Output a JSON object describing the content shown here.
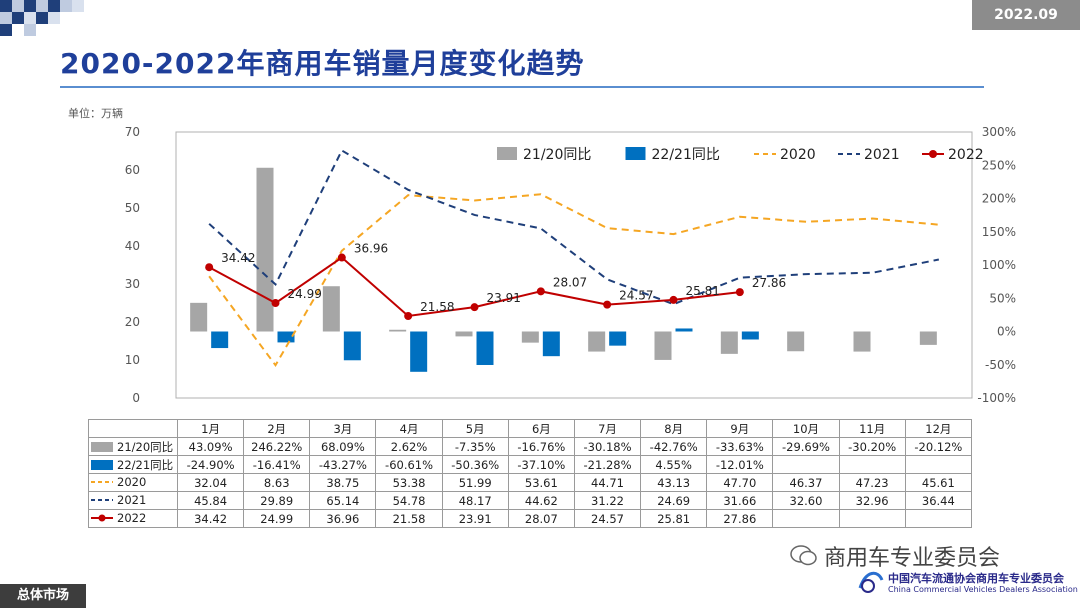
{
  "header": {
    "date": "2022.09",
    "title": "2020-2022年商用车销量月度变化趋势",
    "unit": "单位：万辆"
  },
  "footer": {
    "section": "总体市场",
    "wechat": "商用车专业委员会",
    "association_cn": "中国汽车流通协会商用车专业委员会",
    "association_en": "China Commercial Vehicles Dealers Association"
  },
  "colors": {
    "title": "#1f3f9a",
    "bar_2120": "#a6a6a6",
    "bar_2221": "#0070c0",
    "line_2020": "#f5a623",
    "line_2021": "#1f3f7a",
    "line_2022": "#c00000"
  },
  "chart_data": {
    "type": "bar+line",
    "categories": [
      "1月",
      "2月",
      "3月",
      "4月",
      "5月",
      "6月",
      "7月",
      "8月",
      "9月",
      "10月",
      "11月",
      "12月"
    ],
    "left_axis": {
      "min": 0,
      "max": 70,
      "ticks": [
        "0",
        "10",
        "20",
        "30",
        "40",
        "50",
        "60",
        "70"
      ]
    },
    "right_axis": {
      "min": -100,
      "max": 300,
      "ticks": [
        "-100%",
        "-50%",
        "0%",
        "50%",
        "100%",
        "150%",
        "200%",
        "250%",
        "300%"
      ]
    },
    "bars": [
      {
        "name": "21/20同比",
        "axis": "right",
        "values": [
          43.09,
          246.22,
          68.09,
          2.62,
          -7.35,
          -16.76,
          -30.18,
          -42.76,
          -33.63,
          -29.69,
          -30.2,
          -20.12
        ],
        "labels": [
          "43.09%",
          "246.22%",
          "68.09%",
          "2.62%",
          "-7.35%",
          "-16.76%",
          "-30.18%",
          "-42.76%",
          "-33.63%",
          "-29.69%",
          "-30.20%",
          "-20.12%"
        ]
      },
      {
        "name": "22/21同比",
        "axis": "right",
        "values": [
          -24.9,
          -16.41,
          -43.27,
          -60.61,
          -50.36,
          -37.1,
          -21.28,
          4.55,
          -12.01,
          null,
          null,
          null
        ],
        "labels": [
          "-24.90%",
          "-16.41%",
          "-43.27%",
          "-60.61%",
          "-50.36%",
          "-37.10%",
          "-21.28%",
          "4.55%",
          "-12.01%",
          "",
          "",
          ""
        ]
      }
    ],
    "lines": [
      {
        "name": "2020",
        "axis": "left",
        "style": "dashed",
        "values": [
          32.04,
          8.63,
          38.75,
          53.38,
          51.99,
          53.61,
          44.71,
          43.13,
          47.7,
          46.37,
          47.23,
          45.61
        ],
        "labels": [
          "32.04",
          "8.63",
          "38.75",
          "53.38",
          "51.99",
          "53.61",
          "44.71",
          "43.13",
          "47.70",
          "46.37",
          "47.23",
          "45.61"
        ]
      },
      {
        "name": "2021",
        "axis": "left",
        "style": "dashed",
        "values": [
          45.84,
          29.89,
          65.14,
          54.78,
          48.17,
          44.62,
          31.22,
          24.69,
          31.66,
          32.6,
          32.96,
          36.44
        ],
        "labels": [
          "45.84",
          "29.89",
          "65.14",
          "54.78",
          "48.17",
          "44.62",
          "31.22",
          "24.69",
          "31.66",
          "32.60",
          "32.96",
          "36.44"
        ]
      },
      {
        "name": "2022",
        "axis": "left",
        "style": "solid-marker",
        "values": [
          34.42,
          24.99,
          36.96,
          21.58,
          23.91,
          28.07,
          24.57,
          25.81,
          27.86,
          null,
          null,
          null
        ],
        "labels": [
          "34.42",
          "24.99",
          "36.96",
          "21.58",
          "23.91",
          "28.07",
          "24.57",
          "25.81",
          "27.86",
          "",
          "",
          ""
        ]
      }
    ],
    "legend": [
      "21/20同比",
      "22/21同比",
      "2020",
      "2021",
      "2022"
    ],
    "legend_position": "top-right"
  }
}
